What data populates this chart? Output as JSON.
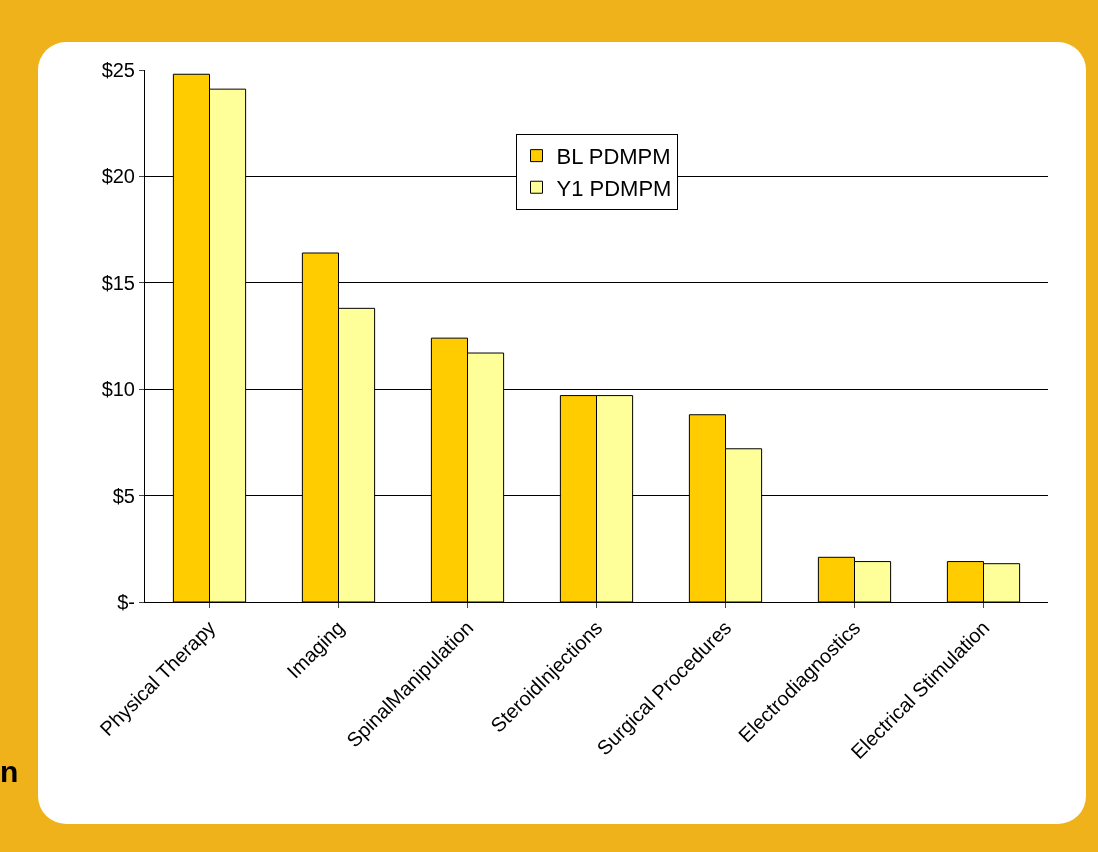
{
  "chart_data": {
    "type": "bar",
    "categories": [
      "Physical Therapy",
      "Imaging",
      "SpinalManipulation",
      "SteroidInjections",
      "Surgical Procedures",
      "Electrodiagnostics",
      "Electrical Stimulation"
    ],
    "series": [
      {
        "name": "BL PDMPM",
        "color": "#ffcc00",
        "values": [
          24.8,
          16.4,
          12.4,
          9.7,
          8.8,
          2.1,
          1.9
        ]
      },
      {
        "name": "Y1 PDMPM",
        "color": "#ffff99",
        "values": [
          24.1,
          13.8,
          11.7,
          9.7,
          7.2,
          1.9,
          1.8
        ]
      }
    ],
    "ylim": [
      0,
      25
    ],
    "yticks": [
      {
        "value": 0,
        "label": "$-"
      },
      {
        "value": 5,
        "label": "$5"
      },
      {
        "value": 10,
        "label": "$10"
      },
      {
        "value": 15,
        "label": "$15"
      },
      {
        "value": 20,
        "label": "$20"
      },
      {
        "value": 25,
        "label": "$25"
      }
    ],
    "grid": "y",
    "legend": "top",
    "annotations": [
      "n"
    ]
  }
}
